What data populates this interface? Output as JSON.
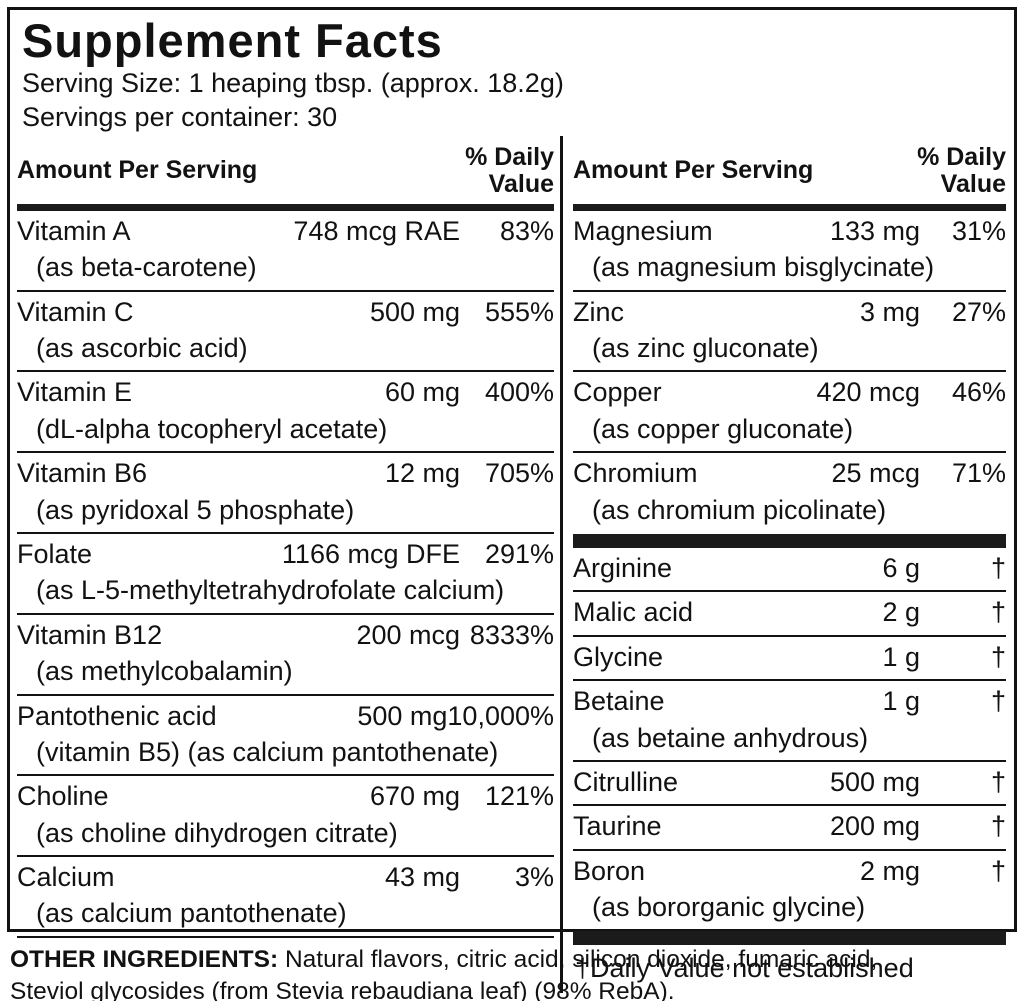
{
  "label": {
    "title": "Supplement Facts",
    "serving_size": "Serving Size: 1 heaping tbsp. (approx. 18.2g)",
    "servings_per_container": "Servings per container: 30",
    "column_header": {
      "amount": "Amount Per Serving",
      "dv_line1": "% Daily",
      "dv_line2": "Value"
    },
    "left_column": {
      "sections": [
        {
          "rows": [
            {
              "name": "Vitamin A",
              "amount": "748 mcg RAE",
              "dv": "83%",
              "sub": "(as beta-carotene)"
            },
            {
              "name": "Vitamin C",
              "amount": "500 mg",
              "dv": "555%",
              "sub": "(as ascorbic acid)"
            },
            {
              "name": "Vitamin E",
              "amount": "60 mg",
              "dv": "400%",
              "sub": "(dL-alpha tocopheryl acetate)"
            },
            {
              "name": "Vitamin B6",
              "amount": "12 mg",
              "dv": "705%",
              "sub": "(as pyridoxal 5 phosphate)"
            },
            {
              "name": "Folate",
              "amount": "1166 mcg DFE",
              "dv": "291%",
              "sub": "(as L-5-methyltetrahydrofolate calcium)"
            },
            {
              "name": "Vitamin B12",
              "amount": "200 mcg",
              "dv": "8333%",
              "sub": "(as methylcobalamin)"
            },
            {
              "name": "Pantothenic acid",
              "amount": "500 mg",
              "dv": "10,000%",
              "sub": "(vitamin B5) (as calcium pantothenate)"
            },
            {
              "name": "Choline",
              "amount": "670 mg",
              "dv": "121%",
              "sub": "(as choline dihydrogen citrate)"
            },
            {
              "name": "Calcium",
              "amount": "43 mg",
              "dv": "3%",
              "sub": "(as calcium pantothenate)"
            }
          ]
        }
      ]
    },
    "right_column": {
      "sections": [
        {
          "rows": [
            {
              "name": "Magnesium",
              "amount": "133 mg",
              "dv": "31%",
              "sub": "(as magnesium bisglycinate)"
            },
            {
              "name": "Zinc",
              "amount": "3 mg",
              "dv": "27%",
              "sub": "(as zinc gluconate)"
            },
            {
              "name": "Copper",
              "amount": "420 mcg",
              "dv": "46%",
              "sub": "(as copper gluconate)"
            },
            {
              "name": "Chromium",
              "amount": "25 mcg",
              "dv": "71%",
              "sub": "(as chromium picolinate)"
            }
          ]
        },
        {
          "bar_before": true,
          "rows": [
            {
              "name": "Arginine",
              "amount": "6 g",
              "dv": "†"
            },
            {
              "name": "Malic acid",
              "amount": "2 g",
              "dv": "†"
            },
            {
              "name": "Glycine",
              "amount": "1 g",
              "dv": "†"
            },
            {
              "name": "Betaine",
              "amount": "1 g",
              "dv": "†",
              "sub": "(as betaine anhydrous)"
            },
            {
              "name": "Citrulline",
              "amount": "500 mg",
              "dv": "†"
            },
            {
              "name": "Taurine",
              "amount": "200 mg",
              "dv": "†"
            },
            {
              "name": "Boron",
              "amount": "2 mg",
              "dv": "†",
              "sub": "(as bororganic glycine)"
            }
          ]
        }
      ]
    },
    "footnote": "†Daily Value not established",
    "other_ingredients": {
      "label": "OTHER INGREDIENTS:",
      "line1": "Natural flavors, citric acid, silicon dioxide, fumaric acid,",
      "line2": "Steviol glycosides (from Stevia rebaudiana leaf) (98% RebA)."
    },
    "colors": {
      "ink": "#121212",
      "paper": "#ffffff"
    }
  }
}
